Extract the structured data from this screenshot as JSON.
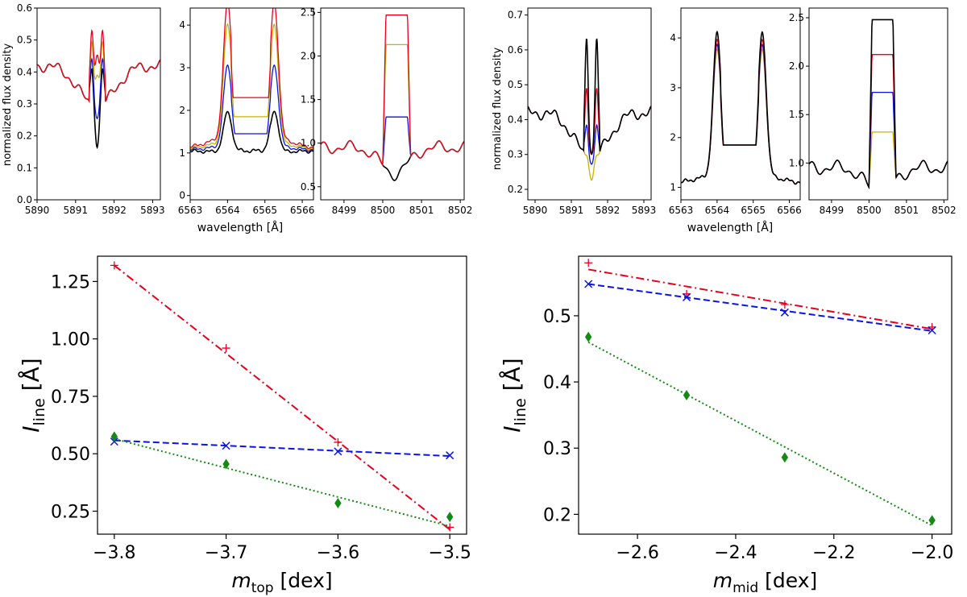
{
  "colors": {
    "red": "#e8001c",
    "gold": "#c8b400",
    "blue": "#0a14e6",
    "black": "#000000",
    "green": "#138a13"
  },
  "left_group": {
    "ylabel": "normalized flux density",
    "xlabel": "wavelength [Å]",
    "panels": [
      {
        "ylim": [
          0,
          0.6
        ],
        "yticks": [
          "0.0",
          "0.1",
          "0.2",
          "0.3",
          "0.4",
          "0.5",
          "0.6"
        ],
        "ytickvals": [
          0,
          0.1,
          0.2,
          0.3,
          0.4,
          0.5,
          0.6
        ],
        "xlim": [
          5890,
          5893.2
        ],
        "xticks": [
          "5890",
          "5891",
          "5892",
          "5893"
        ],
        "xtickvals": [
          5890,
          5891,
          5892,
          5893
        ]
      },
      {
        "ylim": [
          -0.1,
          4.4
        ],
        "yticks": [
          "0",
          "1",
          "2",
          "3",
          "4"
        ],
        "ytickvals": [
          0,
          1,
          2,
          3,
          4
        ],
        "xlim": [
          6563,
          6566.3
        ],
        "xticks": [
          "6563",
          "6564",
          "6565",
          "6566"
        ],
        "xtickvals": [
          6563,
          6564,
          6565,
          6566
        ]
      },
      {
        "ylim": [
          0.35,
          2.55
        ],
        "yticks": [
          "0.5",
          "1.0",
          "1.5",
          "2.0",
          "2.5"
        ],
        "ytickvals": [
          0.5,
          1.0,
          1.5,
          2.0,
          2.5
        ],
        "xlim": [
          8498.4,
          8502.1
        ],
        "xticks": [
          "8499",
          "8500",
          "8501",
          "8502"
        ],
        "xtickvals": [
          8499,
          8500,
          8501,
          8502
        ]
      }
    ]
  },
  "right_group": {
    "ylabel": "normalized flux density",
    "xlabel": "wavelength [Å]",
    "panels": [
      {
        "ylim": [
          0.17,
          0.72
        ],
        "yticks": [
          "0.2",
          "0.3",
          "0.4",
          "0.5",
          "0.6",
          "0.7"
        ],
        "ytickvals": [
          0.2,
          0.3,
          0.4,
          0.5,
          0.6,
          0.7
        ],
        "xlim": [
          5889.8,
          5893.2
        ],
        "xticks": [
          "5890",
          "5891",
          "5892",
          "5893"
        ],
        "xtickvals": [
          5890,
          5891,
          5892,
          5893
        ]
      },
      {
        "ylim": [
          0.75,
          4.6
        ],
        "yticks": [
          "1",
          "2",
          "3",
          "4"
        ],
        "ytickvals": [
          1,
          2,
          3,
          4
        ],
        "xlim": [
          6563,
          6566.3
        ],
        "xticks": [
          "6563",
          "6564",
          "6565",
          "6566"
        ],
        "xtickvals": [
          6563,
          6564,
          6565,
          6566
        ]
      },
      {
        "ylim": [
          0.62,
          2.6
        ],
        "yticks": [
          "1.0",
          "1.5",
          "2.0",
          "2.5"
        ],
        "ytickvals": [
          1.0,
          1.5,
          2.0,
          2.5
        ],
        "xlim": [
          8498.4,
          8502.1
        ],
        "xticks": [
          "8499",
          "8500",
          "8501",
          "8502"
        ],
        "xtickvals": [
          8499,
          8500,
          8501,
          8502
        ]
      }
    ]
  },
  "chart_data": [
    {
      "type": "line",
      "title": "",
      "xlabel": "m_top [dex]",
      "xlabel_main": "m",
      "xlabel_sub": "top",
      "xlabel_unit": " [dex]",
      "ylabel_main": "I",
      "ylabel_sub": "line",
      "ylabel_unit": " [Å]",
      "xlim": [
        -3.815,
        -3.485
      ],
      "ylim": [
        0.15,
        1.36
      ],
      "xticks": [
        "−3.8",
        "−3.7",
        "−3.6",
        "−3.5"
      ],
      "xtickvals": [
        -3.8,
        -3.7,
        -3.6,
        -3.5
      ],
      "yticks": [
        "0.25",
        "0.50",
        "0.75",
        "1.00",
        "1.25"
      ],
      "ytickvals": [
        0.25,
        0.5,
        0.75,
        1.0,
        1.25
      ],
      "x": [
        -3.8,
        -3.7,
        -3.6,
        -3.5
      ],
      "series": [
        {
          "name": "red",
          "marker": "+",
          "values": [
            1.32,
            0.96,
            0.55,
            0.18
          ],
          "fit": [
            1.32,
            0.17
          ]
        },
        {
          "name": "blue",
          "marker": "x",
          "values": [
            0.553,
            0.535,
            0.51,
            0.493
          ],
          "fit": [
            0.558,
            0.49
          ]
        },
        {
          "name": "green",
          "marker": "diamond",
          "values": [
            0.575,
            0.455,
            0.285,
            0.225
          ],
          "fit": [
            0.565,
            0.185
          ]
        }
      ]
    },
    {
      "type": "line",
      "title": "",
      "xlabel": "m_mid [dex]",
      "xlabel_main": "m",
      "xlabel_sub": "mid",
      "xlabel_unit": " [dex]",
      "ylabel_main": "I",
      "ylabel_sub": "line",
      "ylabel_unit": " [Å]",
      "xlim": [
        -2.72,
        -1.96
      ],
      "ylim": [
        0.17,
        0.59
      ],
      "xticks": [
        "−2.6",
        "−2.4",
        "−2.2",
        "−2.0"
      ],
      "xtickvals": [
        -2.6,
        -2.4,
        -2.2,
        -2.0
      ],
      "yticks": [
        "0.2",
        "0.3",
        "0.4",
        "0.5"
      ],
      "ytickvals": [
        0.2,
        0.3,
        0.4,
        0.5
      ],
      "x": [
        -2.7,
        -2.5,
        -2.3,
        -2.0
      ],
      "series": [
        {
          "name": "red",
          "marker": "+",
          "values": [
            0.58,
            0.533,
            0.517,
            0.483
          ],
          "fit": [
            0.57,
            0.48
          ]
        },
        {
          "name": "blue",
          "marker": "x",
          "values": [
            0.548,
            0.528,
            0.505,
            0.478
          ],
          "fit": [
            0.548,
            0.477
          ]
        },
        {
          "name": "green",
          "marker": "diamond",
          "values": [
            0.468,
            0.38,
            0.286,
            0.191
          ],
          "fit": [
            0.46,
            0.183
          ]
        }
      ]
    }
  ]
}
